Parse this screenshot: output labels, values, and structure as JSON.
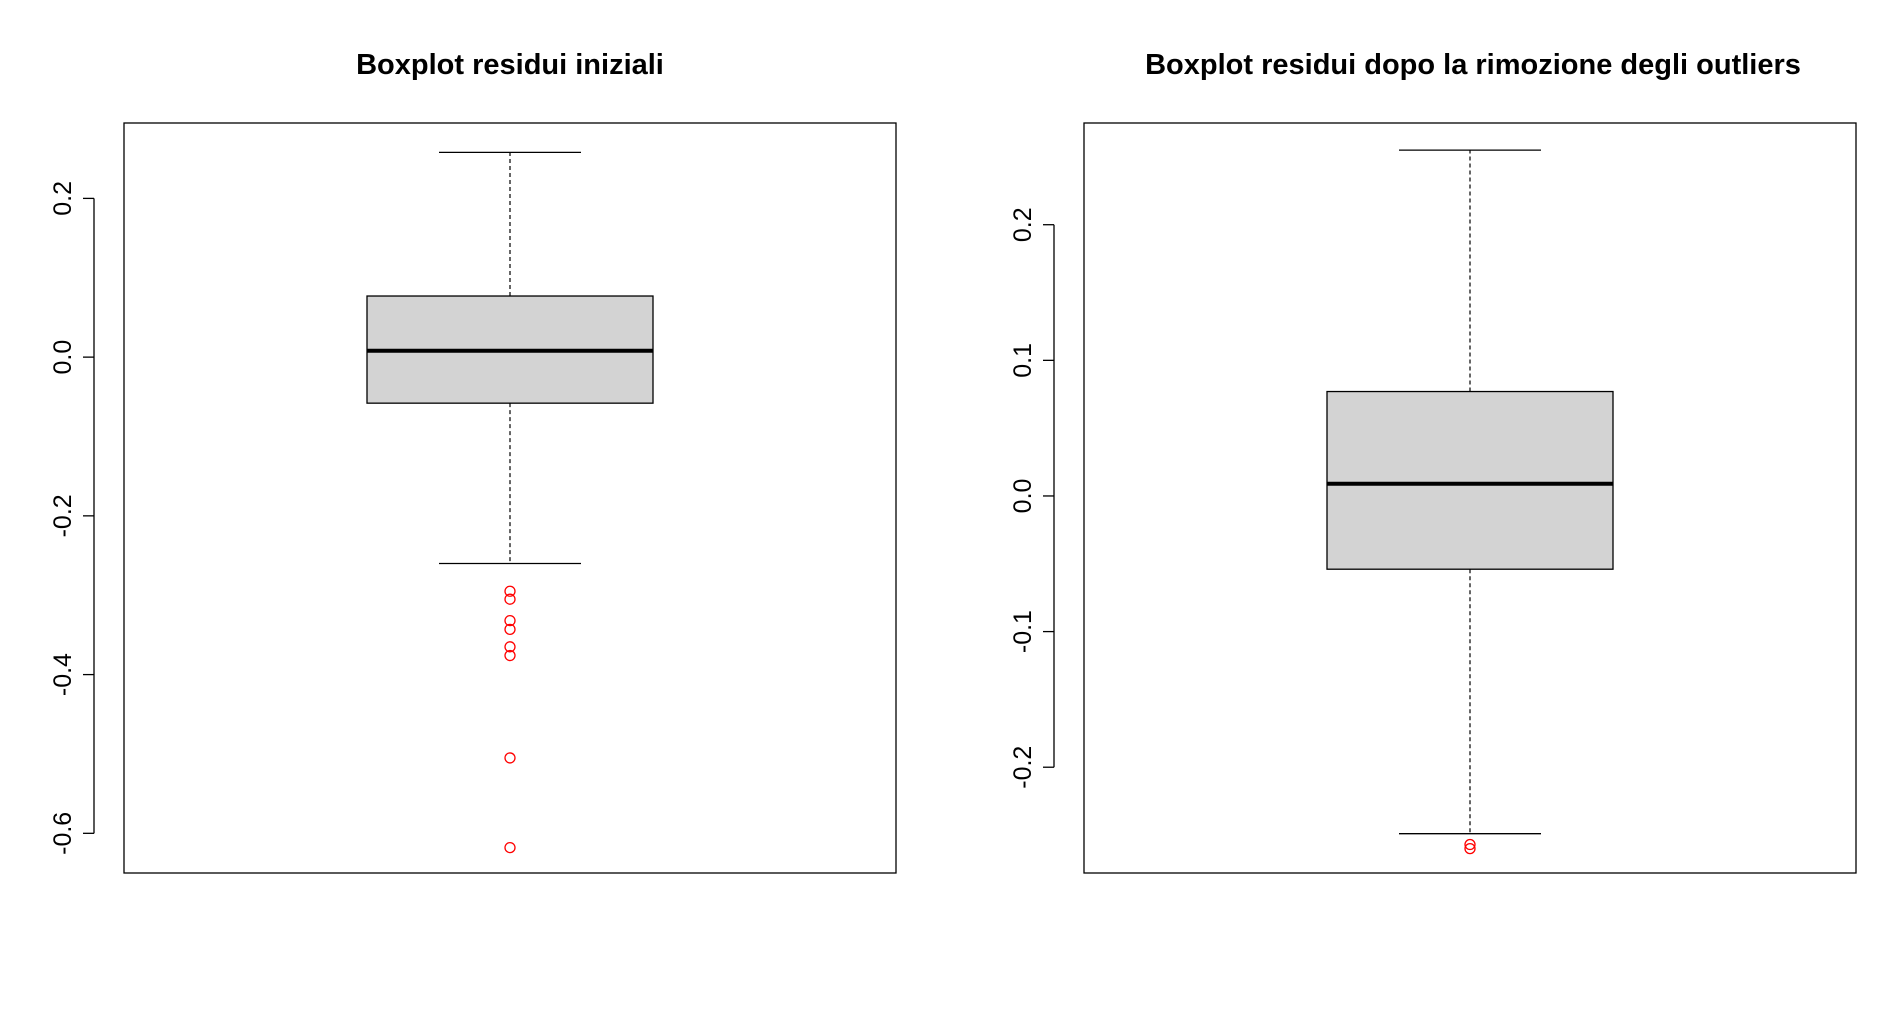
{
  "chart_data": [
    {
      "type": "boxplot",
      "title": "Boxplot residui iniziali",
      "xlabel": "",
      "ylabel": "",
      "ylim": [
        -0.65,
        0.295
      ],
      "yticks": [
        -0.6,
        -0.4,
        -0.2,
        0.0,
        0.2
      ],
      "ytick_labels": [
        "-0.6",
        "-0.4",
        "-0.2",
        "0.0",
        "0.2"
      ],
      "box": {
        "min": -0.26,
        "q1": -0.058,
        "median": 0.008,
        "q3": 0.077,
        "max": 0.258
      },
      "outliers": [
        -0.295,
        -0.305,
        -0.332,
        -0.343,
        -0.365,
        -0.376,
        -0.505,
        -0.618
      ],
      "box_color": "#d3d3d3",
      "outlier_color": "#ff0000",
      "grid": false
    },
    {
      "type": "boxplot",
      "title": "Boxplot residui dopo la rimozione degli outliers",
      "xlabel": "",
      "ylabel": "",
      "ylim": [
        -0.278,
        0.275
      ],
      "yticks": [
        -0.2,
        -0.1,
        0.0,
        0.1,
        0.2
      ],
      "ytick_labels": [
        "-0.2",
        "-0.1",
        "0.0",
        "0.1",
        "0.2"
      ],
      "box": {
        "min": -0.249,
        "q1": -0.054,
        "median": 0.009,
        "q3": 0.077,
        "max": 0.255
      },
      "outliers": [
        -0.257,
        -0.26
      ],
      "box_color": "#d3d3d3",
      "outlier_color": "#ff0000",
      "grid": false
    }
  ]
}
